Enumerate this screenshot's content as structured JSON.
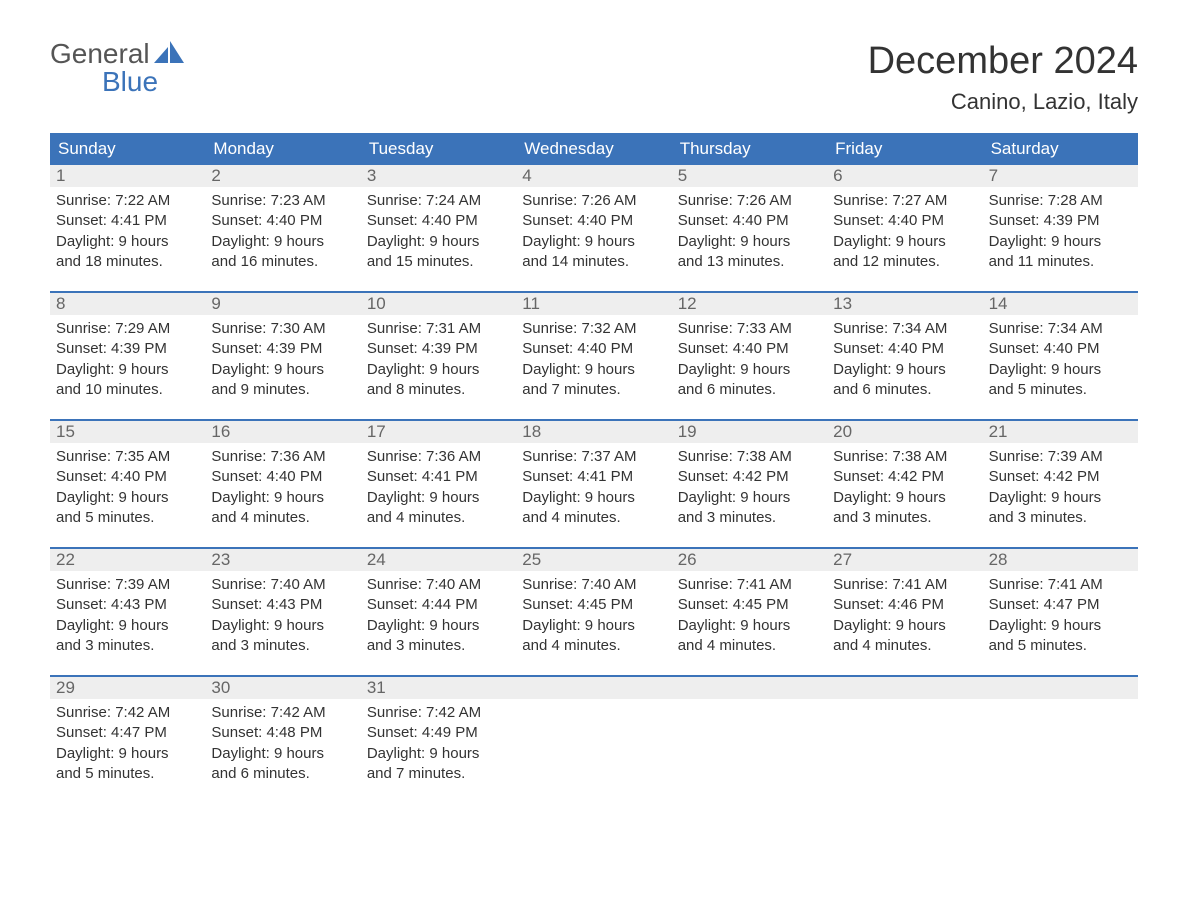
{
  "brand": {
    "word1": "General",
    "word2": "Blue",
    "accent_color": "#3b73b9"
  },
  "title": "December 2024",
  "location": "Canino, Lazio, Italy",
  "colors": {
    "header_bg": "#3b73b9",
    "header_text": "#ffffff",
    "daynum_bg": "#eeeeee",
    "daynum_text": "#666666",
    "week_border": "#3b73b9",
    "body_text": "#333333",
    "page_bg": "#ffffff"
  },
  "fonts": {
    "title_size_pt": 28,
    "location_size_pt": 16,
    "dow_size_pt": 13,
    "body_size_pt": 11
  },
  "days_of_week": [
    "Sunday",
    "Monday",
    "Tuesday",
    "Wednesday",
    "Thursday",
    "Friday",
    "Saturday"
  ],
  "weeks": [
    [
      {
        "n": "1",
        "sunrise": "Sunrise: 7:22 AM",
        "sunset": "Sunset: 4:41 PM",
        "dl1": "Daylight: 9 hours",
        "dl2": "and 18 minutes."
      },
      {
        "n": "2",
        "sunrise": "Sunrise: 7:23 AM",
        "sunset": "Sunset: 4:40 PM",
        "dl1": "Daylight: 9 hours",
        "dl2": "and 16 minutes."
      },
      {
        "n": "3",
        "sunrise": "Sunrise: 7:24 AM",
        "sunset": "Sunset: 4:40 PM",
        "dl1": "Daylight: 9 hours",
        "dl2": "and 15 minutes."
      },
      {
        "n": "4",
        "sunrise": "Sunrise: 7:26 AM",
        "sunset": "Sunset: 4:40 PM",
        "dl1": "Daylight: 9 hours",
        "dl2": "and 14 minutes."
      },
      {
        "n": "5",
        "sunrise": "Sunrise: 7:26 AM",
        "sunset": "Sunset: 4:40 PM",
        "dl1": "Daylight: 9 hours",
        "dl2": "and 13 minutes."
      },
      {
        "n": "6",
        "sunrise": "Sunrise: 7:27 AM",
        "sunset": "Sunset: 4:40 PM",
        "dl1": "Daylight: 9 hours",
        "dl2": "and 12 minutes."
      },
      {
        "n": "7",
        "sunrise": "Sunrise: 7:28 AM",
        "sunset": "Sunset: 4:39 PM",
        "dl1": "Daylight: 9 hours",
        "dl2": "and 11 minutes."
      }
    ],
    [
      {
        "n": "8",
        "sunrise": "Sunrise: 7:29 AM",
        "sunset": "Sunset: 4:39 PM",
        "dl1": "Daylight: 9 hours",
        "dl2": "and 10 minutes."
      },
      {
        "n": "9",
        "sunrise": "Sunrise: 7:30 AM",
        "sunset": "Sunset: 4:39 PM",
        "dl1": "Daylight: 9 hours",
        "dl2": "and 9 minutes."
      },
      {
        "n": "10",
        "sunrise": "Sunrise: 7:31 AM",
        "sunset": "Sunset: 4:39 PM",
        "dl1": "Daylight: 9 hours",
        "dl2": "and 8 minutes."
      },
      {
        "n": "11",
        "sunrise": "Sunrise: 7:32 AM",
        "sunset": "Sunset: 4:40 PM",
        "dl1": "Daylight: 9 hours",
        "dl2": "and 7 minutes."
      },
      {
        "n": "12",
        "sunrise": "Sunrise: 7:33 AM",
        "sunset": "Sunset: 4:40 PM",
        "dl1": "Daylight: 9 hours",
        "dl2": "and 6 minutes."
      },
      {
        "n": "13",
        "sunrise": "Sunrise: 7:34 AM",
        "sunset": "Sunset: 4:40 PM",
        "dl1": "Daylight: 9 hours",
        "dl2": "and 6 minutes."
      },
      {
        "n": "14",
        "sunrise": "Sunrise: 7:34 AM",
        "sunset": "Sunset: 4:40 PM",
        "dl1": "Daylight: 9 hours",
        "dl2": "and 5 minutes."
      }
    ],
    [
      {
        "n": "15",
        "sunrise": "Sunrise: 7:35 AM",
        "sunset": "Sunset: 4:40 PM",
        "dl1": "Daylight: 9 hours",
        "dl2": "and 5 minutes."
      },
      {
        "n": "16",
        "sunrise": "Sunrise: 7:36 AM",
        "sunset": "Sunset: 4:40 PM",
        "dl1": "Daylight: 9 hours",
        "dl2": "and 4 minutes."
      },
      {
        "n": "17",
        "sunrise": "Sunrise: 7:36 AM",
        "sunset": "Sunset: 4:41 PM",
        "dl1": "Daylight: 9 hours",
        "dl2": "and 4 minutes."
      },
      {
        "n": "18",
        "sunrise": "Sunrise: 7:37 AM",
        "sunset": "Sunset: 4:41 PM",
        "dl1": "Daylight: 9 hours",
        "dl2": "and 4 minutes."
      },
      {
        "n": "19",
        "sunrise": "Sunrise: 7:38 AM",
        "sunset": "Sunset: 4:42 PM",
        "dl1": "Daylight: 9 hours",
        "dl2": "and 3 minutes."
      },
      {
        "n": "20",
        "sunrise": "Sunrise: 7:38 AM",
        "sunset": "Sunset: 4:42 PM",
        "dl1": "Daylight: 9 hours",
        "dl2": "and 3 minutes."
      },
      {
        "n": "21",
        "sunrise": "Sunrise: 7:39 AM",
        "sunset": "Sunset: 4:42 PM",
        "dl1": "Daylight: 9 hours",
        "dl2": "and 3 minutes."
      }
    ],
    [
      {
        "n": "22",
        "sunrise": "Sunrise: 7:39 AM",
        "sunset": "Sunset: 4:43 PM",
        "dl1": "Daylight: 9 hours",
        "dl2": "and 3 minutes."
      },
      {
        "n": "23",
        "sunrise": "Sunrise: 7:40 AM",
        "sunset": "Sunset: 4:43 PM",
        "dl1": "Daylight: 9 hours",
        "dl2": "and 3 minutes."
      },
      {
        "n": "24",
        "sunrise": "Sunrise: 7:40 AM",
        "sunset": "Sunset: 4:44 PM",
        "dl1": "Daylight: 9 hours",
        "dl2": "and 3 minutes."
      },
      {
        "n": "25",
        "sunrise": "Sunrise: 7:40 AM",
        "sunset": "Sunset: 4:45 PM",
        "dl1": "Daylight: 9 hours",
        "dl2": "and 4 minutes."
      },
      {
        "n": "26",
        "sunrise": "Sunrise: 7:41 AM",
        "sunset": "Sunset: 4:45 PM",
        "dl1": "Daylight: 9 hours",
        "dl2": "and 4 minutes."
      },
      {
        "n": "27",
        "sunrise": "Sunrise: 7:41 AM",
        "sunset": "Sunset: 4:46 PM",
        "dl1": "Daylight: 9 hours",
        "dl2": "and 4 minutes."
      },
      {
        "n": "28",
        "sunrise": "Sunrise: 7:41 AM",
        "sunset": "Sunset: 4:47 PM",
        "dl1": "Daylight: 9 hours",
        "dl2": "and 5 minutes."
      }
    ],
    [
      {
        "n": "29",
        "sunrise": "Sunrise: 7:42 AM",
        "sunset": "Sunset: 4:47 PM",
        "dl1": "Daylight: 9 hours",
        "dl2": "and 5 minutes."
      },
      {
        "n": "30",
        "sunrise": "Sunrise: 7:42 AM",
        "sunset": "Sunset: 4:48 PM",
        "dl1": "Daylight: 9 hours",
        "dl2": "and 6 minutes."
      },
      {
        "n": "31",
        "sunrise": "Sunrise: 7:42 AM",
        "sunset": "Sunset: 4:49 PM",
        "dl1": "Daylight: 9 hours",
        "dl2": "and 7 minutes."
      },
      null,
      null,
      null,
      null
    ]
  ]
}
